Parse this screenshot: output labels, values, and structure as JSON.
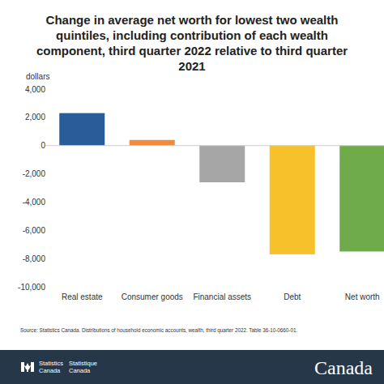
{
  "chart_data": {
    "type": "bar",
    "title": "Change in average net worth for lowest two wealth quintiles, including contribution of each wealth component, third quarter 2022 relative to third quarter 2021",
    "y_label": "dollars",
    "categories": [
      "Real estate",
      "Consumer goods",
      "Financial assets",
      "Debt",
      "Net worth"
    ],
    "values": [
      2300,
      400,
      -2600,
      -7700,
      -7500
    ],
    "colors": [
      "#2b5c9a",
      "#f08a3c",
      "#a6a6a6",
      "#f6c12a",
      "#6fab4a"
    ],
    "ylim": [
      -10000,
      4000
    ],
    "yticks": [
      {
        "value": -10000,
        "label": "-10,000"
      },
      {
        "value": -8000,
        "label": "-8,000"
      },
      {
        "value": -6000,
        "label": "-6,000"
      },
      {
        "value": -4000,
        "label": "-4,000"
      },
      {
        "value": -2000,
        "label": "-2,000"
      },
      0,
      {
        "value": 2000,
        "label": "2,000"
      },
      {
        "value": 4000,
        "label": "4,000"
      }
    ],
    "grid": false,
    "source": "Source: Statistics Canada. Distributions of household economic accounts, wealth, third quarter 2022. Table 36-10-0660-01.",
    "annotations": [
      "Statistics",
      "Canada",
      "Statistique",
      "Canada",
      "Canada"
    ]
  }
}
